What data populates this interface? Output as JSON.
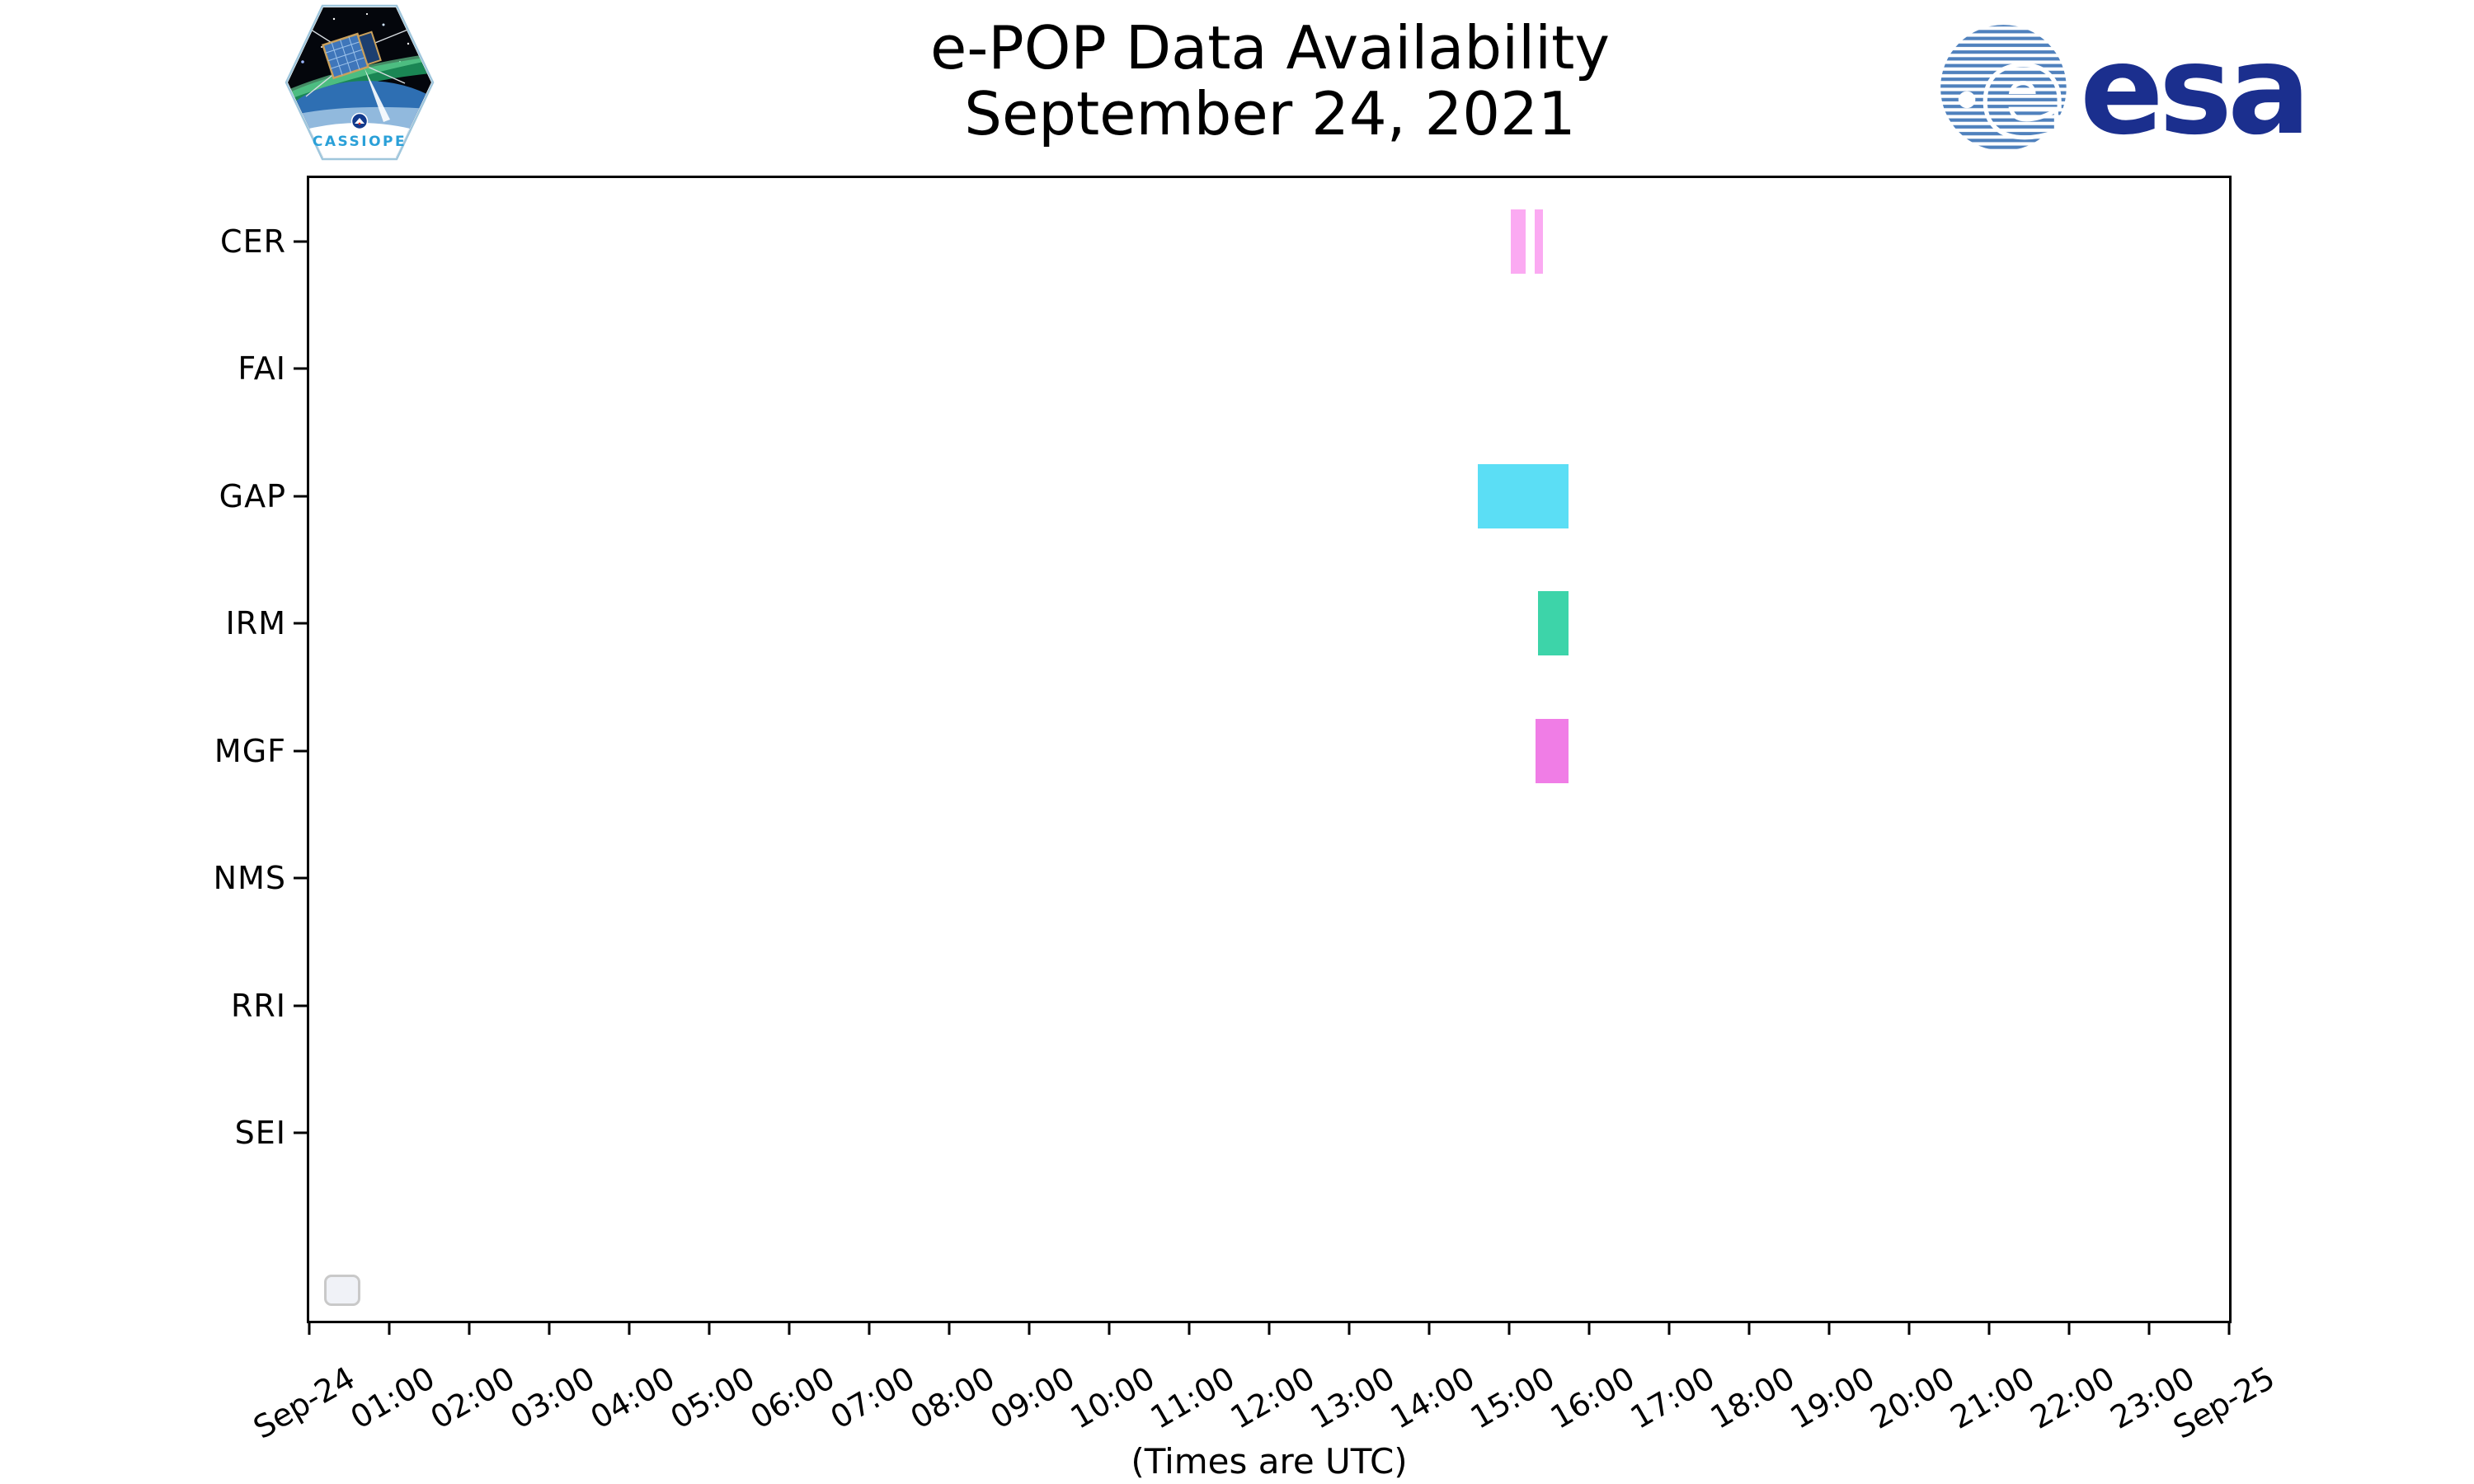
{
  "header": {
    "title_line1": "e-POP Data Availability",
    "title_line2": "September 24, 2021",
    "cassiope_label": "CASSIOPE",
    "esa_wordmark": "esa"
  },
  "brand_colors": {
    "esa_navy": "#1b2f8e",
    "esa_globe_blue": "#4f81bd",
    "cassiope_blue": "#2aa0d8"
  },
  "legend": {
    "present": true,
    "entries": []
  },
  "chart_data": {
    "type": "bar",
    "variant": "timeline-availability",
    "title": "e-POP Data Availability",
    "subtitle": "September 24, 2021",
    "xlabel": "(Times are UTC)",
    "x_axis": {
      "start": "Sep-24 00:00 UTC",
      "end": "Sep-25 00:00 UTC",
      "range_hours": [
        0,
        24
      ],
      "tick_interval_hours": 1,
      "tick_labels": [
        "Sep-24",
        "01:00",
        "02:00",
        "03:00",
        "04:00",
        "05:00",
        "06:00",
        "07:00",
        "08:00",
        "09:00",
        "10:00",
        "11:00",
        "12:00",
        "13:00",
        "14:00",
        "15:00",
        "16:00",
        "17:00",
        "18:00",
        "19:00",
        "20:00",
        "21:00",
        "22:00",
        "23:00",
        "Sep-25"
      ],
      "tick_label_rotation_deg": 30,
      "grid": false
    },
    "y_categories": [
      "CER",
      "FAI",
      "GAP",
      "IRM",
      "MGF",
      "NMS",
      "RRI",
      "SEI"
    ],
    "rows": [
      {
        "instrument": "CER",
        "color": "#fbaaf2",
        "intervals": [
          {
            "start": "15:01",
            "end": "15:12",
            "start_hour": 15.02,
            "end_hour": 15.21
          },
          {
            "start": "15:19",
            "end": "15:25",
            "start_hour": 15.32,
            "end_hour": 15.42
          }
        ]
      },
      {
        "instrument": "FAI",
        "color": null,
        "intervals": []
      },
      {
        "instrument": "GAP",
        "color": "#5bdef5",
        "intervals": [
          {
            "start": "14:36",
            "end": "15:45",
            "start_hour": 14.61,
            "end_hour": 15.74
          }
        ]
      },
      {
        "instrument": "IRM",
        "color": "#3dd4a9",
        "intervals": [
          {
            "start": "15:22",
            "end": "15:45",
            "start_hour": 15.36,
            "end_hour": 15.74
          }
        ]
      },
      {
        "instrument": "MGF",
        "color": "#f07de6",
        "intervals": [
          {
            "start": "15:20",
            "end": "15:45",
            "start_hour": 15.33,
            "end_hour": 15.74
          }
        ]
      },
      {
        "instrument": "NMS",
        "color": null,
        "intervals": []
      },
      {
        "instrument": "RRI",
        "color": null,
        "intervals": []
      },
      {
        "instrument": "SEI",
        "color": null,
        "intervals": []
      }
    ],
    "legend_position": "lower-left (empty box)"
  }
}
